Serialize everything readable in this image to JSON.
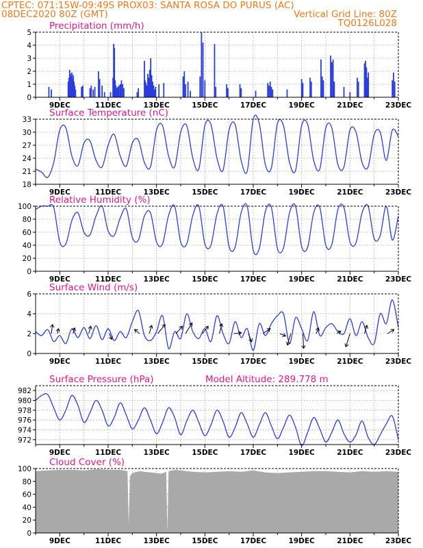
{
  "header": {
    "line1_left": "CPTEC:   071:15W-09:49S   PROX03: SANTA ROSA DO PURUS (AC)",
    "line2_left": "08DEC2020 80Z (GMT)",
    "line2_right": "Vertical Grid Line: 80Z",
    "line3_right": "TQ0126L028"
  },
  "colors": {
    "header_text": "#f07a1a",
    "panel_title": "#e0188c",
    "series_line": "#2a3ddb",
    "precip_bar": "#2a3ddb",
    "cloud_fill": "#a9a9a9",
    "wind_arrow": "#000000",
    "grid": "#9a9a9a"
  },
  "chart_data": [
    {
      "type": "bar",
      "title": "Precipitation (mm/h)",
      "ylim": [
        0,
        5
      ],
      "yticks": [
        "0",
        "1",
        "2",
        "3",
        "4",
        "5"
      ],
      "xticks": [
        "9DEC",
        "11DEC",
        "13DEC",
        "15DEC",
        "17DEC",
        "19DEC",
        "21DEC",
        "23DEC"
      ],
      "grid": true,
      "bars": [
        {
          "x": 8.55,
          "y": 0.8
        },
        {
          "x": 8.65,
          "y": 0.6
        },
        {
          "x": 9.35,
          "y": 1.2
        },
        {
          "x": 9.38,
          "y": 1.5
        },
        {
          "x": 9.41,
          "y": 2.1
        },
        {
          "x": 9.44,
          "y": 1.8
        },
        {
          "x": 9.47,
          "y": 1.6
        },
        {
          "x": 9.5,
          "y": 1.9
        },
        {
          "x": 9.53,
          "y": 1.4
        },
        {
          "x": 9.56,
          "y": 1.7
        },
        {
          "x": 9.59,
          "y": 1.2
        },
        {
          "x": 9.62,
          "y": 0.9
        },
        {
          "x": 9.65,
          "y": 0.6
        },
        {
          "x": 9.9,
          "y": 0.8
        },
        {
          "x": 9.95,
          "y": 0.9
        },
        {
          "x": 10.25,
          "y": 0.7
        },
        {
          "x": 10.3,
          "y": 0.9
        },
        {
          "x": 10.38,
          "y": 0.6
        },
        {
          "x": 10.45,
          "y": 0.8
        },
        {
          "x": 10.6,
          "y": 2.0
        },
        {
          "x": 10.65,
          "y": 1.4
        },
        {
          "x": 10.75,
          "y": 0.9
        },
        {
          "x": 10.85,
          "y": 0.4
        },
        {
          "x": 11.1,
          "y": 0.4
        },
        {
          "x": 11.2,
          "y": 1.5
        },
        {
          "x": 11.23,
          "y": 4.1
        },
        {
          "x": 11.26,
          "y": 3.8
        },
        {
          "x": 11.29,
          "y": 1.3
        },
        {
          "x": 11.32,
          "y": 0.9
        },
        {
          "x": 11.36,
          "y": 0.7
        },
        {
          "x": 11.4,
          "y": 0.8
        },
        {
          "x": 11.45,
          "y": 0.9
        },
        {
          "x": 11.5,
          "y": 1.0
        },
        {
          "x": 11.55,
          "y": 1.3
        },
        {
          "x": 11.6,
          "y": 1.0
        },
        {
          "x": 11.65,
          "y": 0.7
        },
        {
          "x": 12.2,
          "y": 0.4
        },
        {
          "x": 12.25,
          "y": 0.7
        },
        {
          "x": 12.5,
          "y": 2.8
        },
        {
          "x": 12.53,
          "y": 1.3
        },
        {
          "x": 12.56,
          "y": 1.1
        },
        {
          "x": 12.6,
          "y": 0.9
        },
        {
          "x": 12.64,
          "y": 1.8
        },
        {
          "x": 12.68,
          "y": 1.5
        },
        {
          "x": 12.72,
          "y": 2.1
        },
        {
          "x": 12.76,
          "y": 3.0
        },
        {
          "x": 12.8,
          "y": 1.7
        },
        {
          "x": 12.84,
          "y": 1.2
        },
        {
          "x": 12.88,
          "y": 0.9
        },
        {
          "x": 12.92,
          "y": 0.6
        },
        {
          "x": 12.96,
          "y": 0.8
        },
        {
          "x": 13.1,
          "y": 1.0
        },
        {
          "x": 13.3,
          "y": 1.1
        },
        {
          "x": 14.1,
          "y": 1.6
        },
        {
          "x": 14.15,
          "y": 2.0
        },
        {
          "x": 14.2,
          "y": 1.0
        },
        {
          "x": 14.3,
          "y": 1.2
        },
        {
          "x": 14.4,
          "y": 0.5
        },
        {
          "x": 14.8,
          "y": 1.6
        },
        {
          "x": 14.86,
          "y": 5.0
        },
        {
          "x": 14.92,
          "y": 4.2
        },
        {
          "x": 15.0,
          "y": 1.3
        },
        {
          "x": 15.4,
          "y": 4.1
        },
        {
          "x": 15.45,
          "y": 0.8
        },
        {
          "x": 15.9,
          "y": 1.0
        },
        {
          "x": 15.95,
          "y": 0.7
        },
        {
          "x": 16.45,
          "y": 1.0
        },
        {
          "x": 16.5,
          "y": 0.7
        },
        {
          "x": 17.1,
          "y": 0.5
        },
        {
          "x": 17.6,
          "y": 1.1
        },
        {
          "x": 17.65,
          "y": 0.9
        },
        {
          "x": 17.7,
          "y": 1.2
        },
        {
          "x": 17.75,
          "y": 0.8
        },
        {
          "x": 17.8,
          "y": 0.6
        },
        {
          "x": 18.4,
          "y": 0.6
        },
        {
          "x": 19.0,
          "y": 1.4
        },
        {
          "x": 19.05,
          "y": 1.1
        },
        {
          "x": 19.35,
          "y": 1.5
        },
        {
          "x": 19.4,
          "y": 1.2
        },
        {
          "x": 19.8,
          "y": 2.9
        },
        {
          "x": 19.85,
          "y": 1.6
        },
        {
          "x": 19.9,
          "y": 1.3
        },
        {
          "x": 20.2,
          "y": 3.2
        },
        {
          "x": 20.25,
          "y": 2.7
        },
        {
          "x": 20.3,
          "y": 2.9
        },
        {
          "x": 20.35,
          "y": 1.2
        },
        {
          "x": 20.75,
          "y": 0.8
        },
        {
          "x": 21.0,
          "y": 0.4
        },
        {
          "x": 21.3,
          "y": 1.5
        },
        {
          "x": 21.35,
          "y": 1.2
        },
        {
          "x": 21.6,
          "y": 2.6
        },
        {
          "x": 21.64,
          "y": 2.8
        },
        {
          "x": 21.68,
          "y": 2.3
        },
        {
          "x": 21.72,
          "y": 1.5
        },
        {
          "x": 21.76,
          "y": 1.9
        },
        {
          "x": 22.75,
          "y": 1.3
        },
        {
          "x": 22.8,
          "y": 1.9
        },
        {
          "x": 22.85,
          "y": 1.2
        }
      ]
    },
    {
      "type": "line",
      "title": "Surface Temperature (nC)",
      "ylim": [
        18,
        33
      ],
      "yticks": [
        "18",
        "21",
        "24",
        "27",
        "30",
        "33"
      ],
      "xticks": [
        "9DEC",
        "11DEC",
        "13DEC",
        "15DEC",
        "17DEC",
        "19DEC",
        "21DEC",
        "23DEC"
      ],
      "grid": true,
      "x": [
        8.0,
        8.25,
        8.5,
        8.75,
        9.0,
        9.25,
        9.5,
        9.75,
        10.0,
        10.25,
        10.5,
        10.75,
        11.0,
        11.25,
        11.5,
        11.75,
        12.0,
        12.25,
        12.5,
        12.75,
        13.0,
        13.25,
        13.5,
        13.75,
        14.0,
        14.25,
        14.5,
        14.75,
        15.0,
        15.25,
        15.5,
        15.75,
        16.0,
        16.25,
        16.5,
        16.75,
        17.0,
        17.25,
        17.5,
        17.75,
        18.0,
        18.25,
        18.5,
        18.75,
        19.0,
        19.25,
        19.5,
        19.75,
        20.0,
        20.25,
        20.5,
        20.75,
        21.0,
        21.25,
        21.5,
        21.75,
        22.0,
        22.25,
        22.5,
        22.75,
        23.0
      ],
      "y": [
        21.5,
        20.8,
        19.6,
        23.0,
        30.5,
        31.0,
        24.5,
        22.3,
        27.5,
        28.0,
        23.5,
        22.0,
        27.0,
        29.5,
        24.5,
        22.2,
        27.5,
        28.2,
        23.0,
        22.0,
        30.5,
        31.5,
        24.5,
        22.0,
        30.0,
        31.5,
        24.0,
        21.5,
        31.5,
        31.8,
        24.0,
        21.2,
        30.5,
        31.8,
        23.5,
        21.0,
        33.0,
        32.0,
        22.5,
        21.8,
        32.0,
        31.5,
        23.0,
        21.2,
        31.5,
        31.8,
        23.5,
        21.5,
        31.0,
        31.0,
        22.5,
        22.0,
        30.5,
        30.0,
        23.0,
        22.0,
        29.5,
        30.0,
        23.5,
        30.5,
        29.0
      ]
    },
    {
      "type": "line",
      "title": "Relative Humidity (%)",
      "ylim": [
        0,
        100
      ],
      "yticks": [
        "0",
        "20",
        "40",
        "60",
        "80",
        "100"
      ],
      "xticks": [
        "9DEC",
        "11DEC",
        "13DEC",
        "15DEC",
        "17DEC",
        "19DEC",
        "21DEC",
        "23DEC"
      ],
      "grid": true,
      "x": [
        8.0,
        8.25,
        8.5,
        8.75,
        9.0,
        9.25,
        9.5,
        9.75,
        10.0,
        10.25,
        10.5,
        10.75,
        11.0,
        11.25,
        11.5,
        11.75,
        12.0,
        12.25,
        12.5,
        12.75,
        13.0,
        13.25,
        13.5,
        13.75,
        14.0,
        14.25,
        14.5,
        14.75,
        15.0,
        15.25,
        15.5,
        15.75,
        16.0,
        16.25,
        16.5,
        16.75,
        17.0,
        17.25,
        17.5,
        17.75,
        18.0,
        18.25,
        18.5,
        18.75,
        19.0,
        19.25,
        19.5,
        19.75,
        20.0,
        20.25,
        20.5,
        20.75,
        21.0,
        21.25,
        21.5,
        21.75,
        22.0,
        22.25,
        22.5,
        22.75,
        23.0
      ],
      "y": [
        95,
        100,
        100,
        98,
        45,
        42,
        78,
        90,
        60,
        56,
        85,
        100,
        62,
        55,
        82,
        96,
        52,
        48,
        85,
        90,
        45,
        42,
        86,
        100,
        45,
        42,
        86,
        100,
        42,
        40,
        88,
        100,
        38,
        37,
        90,
        100,
        32,
        35,
        92,
        98,
        35,
        36,
        90,
        100,
        38,
        37,
        90,
        98,
        40,
        41,
        95,
        98,
        45,
        44,
        90,
        100,
        50,
        55,
        100,
        48,
        85
      ]
    },
    {
      "type": "line",
      "title": "Surface Wind (m/s)",
      "ylim": [
        0,
        6
      ],
      "yticks": [
        "0",
        "2",
        "4",
        "6"
      ],
      "xticks": [
        "9DEC",
        "11DEC",
        "13DEC",
        "15DEC",
        "17DEC",
        "19DEC",
        "21DEC",
        "23DEC"
      ],
      "grid": true,
      "x": [
        8.0,
        8.25,
        8.5,
        8.75,
        9.0,
        9.25,
        9.5,
        9.75,
        10.0,
        10.25,
        10.5,
        10.75,
        11.0,
        11.25,
        11.5,
        11.75,
        12.0,
        12.25,
        12.5,
        12.75,
        13.0,
        13.25,
        13.5,
        13.75,
        14.0,
        14.25,
        14.5,
        14.75,
        15.0,
        15.25,
        15.5,
        15.75,
        16.0,
        16.25,
        16.5,
        16.75,
        17.0,
        17.25,
        17.5,
        17.75,
        18.0,
        18.25,
        18.5,
        18.75,
        19.0,
        19.25,
        19.5,
        19.75,
        20.0,
        20.25,
        20.5,
        20.75,
        21.0,
        21.25,
        21.5,
        21.75,
        22.0,
        22.25,
        22.5,
        22.75,
        23.0
      ],
      "y": [
        2.2,
        1.8,
        2.4,
        1.2,
        1.8,
        1.0,
        2.5,
        1.6,
        2.6,
        1.5,
        2.8,
        1.4,
        2.5,
        1.3,
        2.2,
        1.6,
        3.2,
        4.3,
        1.8,
        1.3,
        2.2,
        3.8,
        0.5,
        2.2,
        1.5,
        4.0,
        2.2,
        1.5,
        2.5,
        1.2,
        3.8,
        2.0,
        1.0,
        3.2,
        1.6,
        2.5,
        0.3,
        3.0,
        1.8,
        3.0,
        3.8,
        4.0,
        1.0,
        3.6,
        2.5,
        1.3,
        4.2,
        1.8,
        2.6,
        3.0,
        2.2,
        2.0,
        3.5,
        1.8,
        3.2,
        1.6,
        1.0,
        4.0,
        3.0,
        5.4,
        2.6
      ],
      "wind_vectors": [
        {
          "x": 8.65,
          "u": 0.15,
          "v": 1.1
        },
        {
          "x": 8.9,
          "u": 0.15,
          "v": 0.6
        },
        {
          "x": 9.55,
          "u": 0.2,
          "v": 0.7
        },
        {
          "x": 10.2,
          "u": 0.25,
          "v": 0.9
        },
        {
          "x": 11.05,
          "u": 0.3,
          "v": -0.7
        },
        {
          "x": 12.3,
          "u": -0.6,
          "v": 0.5
        },
        {
          "x": 12.7,
          "u": 0.3,
          "v": 1.0
        },
        {
          "x": 13.05,
          "u": 0.9,
          "v": 1.1
        },
        {
          "x": 13.8,
          "u": 0.8,
          "v": 0.9
        },
        {
          "x": 14.2,
          "u": 0.8,
          "v": 1.3
        },
        {
          "x": 14.9,
          "u": 0.7,
          "v": 0.9
        },
        {
          "x": 15.6,
          "u": 0.3,
          "v": 1.2
        },
        {
          "x": 16.2,
          "u": 0.9,
          "v": 0.1
        },
        {
          "x": 16.8,
          "u": 0.4,
          "v": -1.0
        },
        {
          "x": 17.4,
          "u": 0.9,
          "v": 0.6
        },
        {
          "x": 18.1,
          "u": 0.7,
          "v": -0.3
        },
        {
          "x": 18.55,
          "u": -0.4,
          "v": -1.4
        },
        {
          "x": 19.05,
          "u": 0.1,
          "v": -1.8
        },
        {
          "x": 19.6,
          "u": 0.3,
          "v": 0.7
        },
        {
          "x": 20.45,
          "u": 0.5,
          "v": 0.3
        },
        {
          "x": 21.0,
          "u": -0.5,
          "v": -1.6
        },
        {
          "x": 21.6,
          "u": 0.3,
          "v": 1.0
        },
        {
          "x": 22.55,
          "u": 0.8,
          "v": 0.5
        }
      ]
    },
    {
      "type": "line",
      "title": "Surface Pressure (hPa)",
      "annotation": "Model Altitude: 289.778  m",
      "ylim": [
        971,
        983
      ],
      "yticks": [
        "972",
        "974",
        "976",
        "978",
        "980",
        "982"
      ],
      "xticks": [
        "9DEC",
        "11DEC",
        "13DEC",
        "15DEC",
        "17DEC",
        "19DEC",
        "21DEC",
        "23DEC"
      ],
      "grid": true,
      "x": [
        8.0,
        8.25,
        8.5,
        8.75,
        9.0,
        9.25,
        9.5,
        9.75,
        10.0,
        10.25,
        10.5,
        10.75,
        11.0,
        11.25,
        11.5,
        11.75,
        12.0,
        12.25,
        12.5,
        12.75,
        13.0,
        13.25,
        13.5,
        13.75,
        14.0,
        14.25,
        14.5,
        14.75,
        15.0,
        15.25,
        15.5,
        15.75,
        16.0,
        16.25,
        16.5,
        16.75,
        17.0,
        17.25,
        17.5,
        17.75,
        18.0,
        18.25,
        18.5,
        18.75,
        19.0,
        19.25,
        19.5,
        19.75,
        20.0,
        20.25,
        20.5,
        20.75,
        21.0,
        21.25,
        21.5,
        21.75,
        22.0,
        22.25,
        22.5,
        22.75,
        23.0
      ],
      "y": [
        980.0,
        981.0,
        981.2,
        978.5,
        976.0,
        978.0,
        981.0,
        979.0,
        975.5,
        977.5,
        980.0,
        978.0,
        974.8,
        976.5,
        979.5,
        977.0,
        974.2,
        976.0,
        978.5,
        976.0,
        973.2,
        975.5,
        978.5,
        976.5,
        973.0,
        975.8,
        978.0,
        975.5,
        972.8,
        975.0,
        978.0,
        975.8,
        972.5,
        974.5,
        977.5,
        975.2,
        972.5,
        975.0,
        977.5,
        974.8,
        972.2,
        974.5,
        977.0,
        974.5,
        970.8,
        973.5,
        976.5,
        974.2,
        971.5,
        973.5,
        976.0,
        973.2,
        971.5,
        973.0,
        975.8,
        972.5,
        971.0,
        973.0,
        975.2,
        976.8,
        972.0
      ]
    },
    {
      "type": "area",
      "title": "Cloud Cover (%)",
      "ylim": [
        0,
        100
      ],
      "yticks": [
        "0",
        "20",
        "40",
        "60",
        "80",
        "100"
      ],
      "xticks": [
        "9DEC",
        "11DEC",
        "13DEC",
        "15DEC",
        "17DEC",
        "19DEC",
        "21DEC",
        "23DEC"
      ],
      "grid": true,
      "x": [
        8.0,
        8.5,
        9.0,
        9.5,
        10.0,
        10.5,
        11.0,
        11.5,
        11.8,
        11.85,
        11.9,
        12.0,
        12.3,
        12.5,
        12.75,
        13.0,
        13.2,
        13.4,
        13.45,
        13.5,
        13.8,
        14.0,
        14.5,
        15.0,
        15.5,
        16.0,
        16.5,
        17.0,
        17.5,
        18.0,
        18.5,
        19.0,
        19.5,
        20.0,
        20.5,
        21.0,
        21.5,
        22.0,
        22.5,
        23.0
      ],
      "y": [
        96,
        97,
        98,
        98,
        97,
        99,
        98,
        98,
        96,
        12,
        88,
        93,
        96,
        95,
        94,
        93,
        92,
        95,
        2,
        96,
        98,
        97,
        95,
        94,
        95,
        96,
        95,
        97,
        94,
        93,
        94,
        95,
        96,
        96,
        95,
        94,
        96,
        95,
        96,
        95
      ]
    }
  ]
}
